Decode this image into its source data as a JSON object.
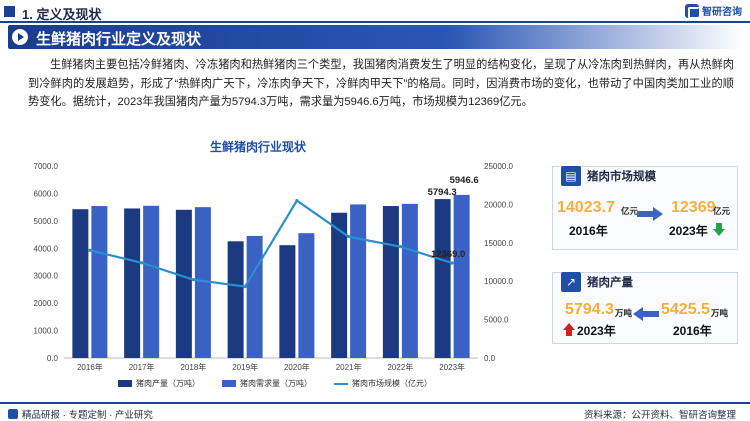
{
  "header": {
    "section_title": "1. 定义及现状",
    "logo_text": "智研咨询"
  },
  "banner": {
    "title": "生鲜猪肉行业定义及现状"
  },
  "paragraph": "生鲜猪肉主要包括冷鲜猪肉、冷冻猪肉和热鲜猪肉三个类型，我国猪肉消费发生了明显的结构变化，呈现了从冷冻肉到热鲜肉，再从热鲜肉到冷鲜肉的发展趋势，形成了“热鲜肉广天下，冷冻肉争天下，冷鲜肉甲天下”的格局。同时，因消费市场的变化，也带动了中国肉类加工业的顺势变化。据统计，2023年我国猪肉产量为5794.3万吨，需求量为5946.6万吨，市场规模为12369亿元。",
  "chart_data": {
    "type": "bar",
    "title": "生鲜猪肉行业现状",
    "categories": [
      "2016年",
      "2017年",
      "2018年",
      "2019年",
      "2020年",
      "2021年",
      "2022年",
      "2023年"
    ],
    "series": [
      {
        "name": "猪肉产量（万吨）",
        "axis": "left",
        "kind": "bar",
        "color": "#1b3a82",
        "values": [
          5425.5,
          5452,
          5404,
          4255,
          4113,
          5296,
          5541,
          5794.3
        ]
      },
      {
        "name": "猪肉需求量（万吨）",
        "axis": "left",
        "kind": "bar",
        "color": "#3a62c4",
        "values": [
          5540,
          5550,
          5500,
          4450,
          4550,
          5600,
          5620,
          5946.6
        ]
      },
      {
        "name": "猪肉市场规模（亿元）",
        "axis": "right",
        "kind": "line",
        "color": "#2a8fd0",
        "values": [
          14023.7,
          12400,
          10200,
          9300,
          20500,
          15800,
          14500,
          12369
        ]
      }
    ],
    "left_axis": {
      "min": 0,
      "max": 7000,
      "ticks": [
        "0.0",
        "1000.0",
        "2000.0",
        "3000.0",
        "4000.0",
        "5000.0",
        "6000.0",
        "7000.0"
      ]
    },
    "right_axis": {
      "min": 0,
      "max": 25000,
      "ticks": [
        "0.0",
        "5000.0",
        "10000.0",
        "15000.0",
        "20000.0",
        "25000.0"
      ]
    },
    "data_labels": {
      "production_2023": "5794.3",
      "demand_2023": "5946.6",
      "market_2023": "12369.0"
    },
    "legend_position": "bottom"
  },
  "cards": {
    "market": {
      "title": "猪肉市场规模",
      "value_2016": "14023.7",
      "unit_2016": "亿元",
      "year_2016": "2016年",
      "value_2023": "12369",
      "unit_2023": "亿元",
      "year_2023": "2023年"
    },
    "production": {
      "title": "猪肉产量",
      "value_2023": "5794.3",
      "unit_2023": "万吨",
      "year_2023": "2023年",
      "value_2016": "5425.5",
      "unit_2016": "万吨",
      "year_2016": "2016年"
    }
  },
  "footer": {
    "left": "精品研报 · 专题定制 · 产业研究",
    "right": "资料来源：公开资料、智研咨询整理"
  },
  "colors": {
    "primary": "#1f3f8f",
    "accent_orange": "#f6b03a",
    "down_green": "#22a447",
    "up_red": "#d62020"
  }
}
